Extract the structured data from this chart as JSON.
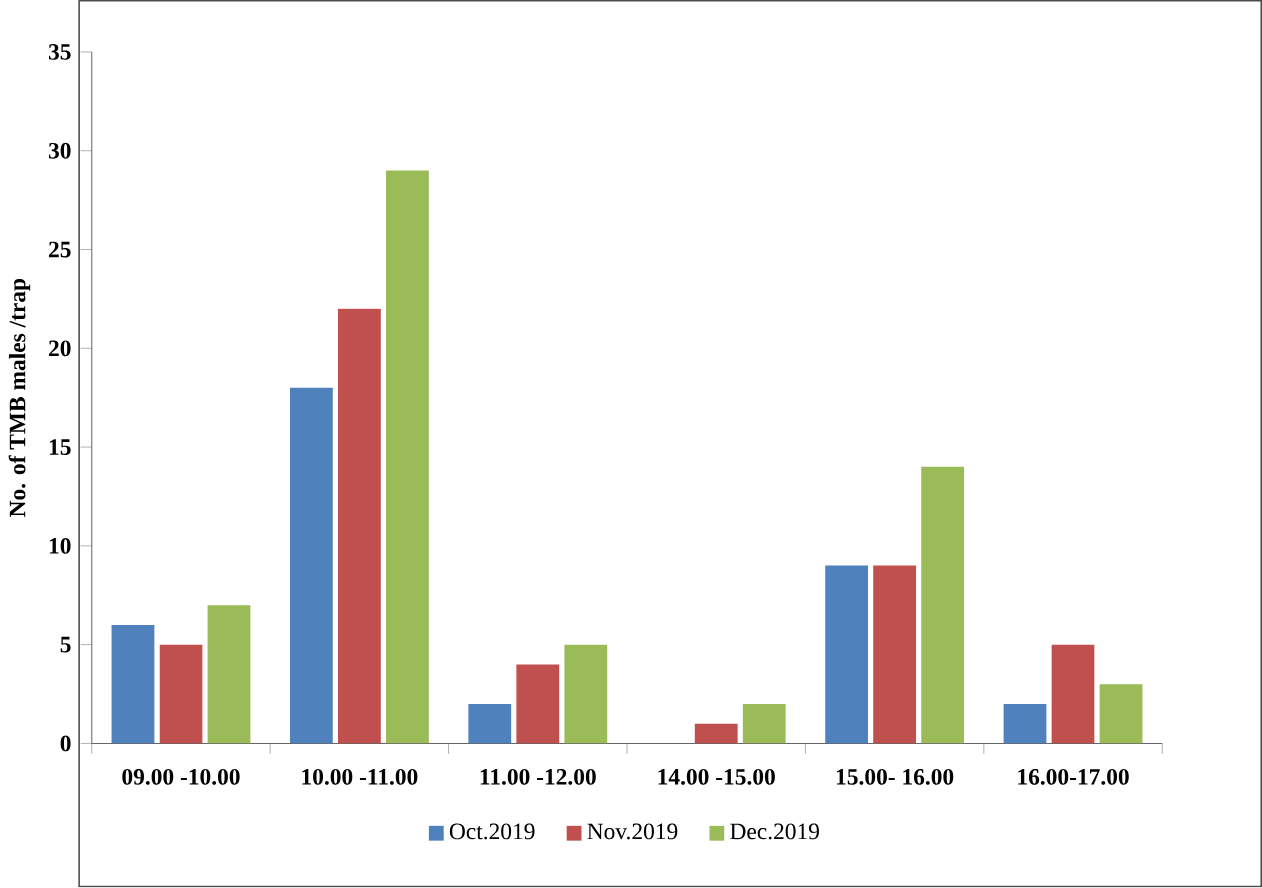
{
  "chart_data": {
    "type": "bar",
    "ylabel": "No. of TMB males /trap",
    "categories": [
      "09.00 -10.00",
      "10.00 -11.00",
      "11.00 -12.00",
      "14.00 -15.00",
      "15.00- 16.00",
      "16.00-17.00"
    ],
    "series": [
      {
        "name": "Oct.2019",
        "color": "#4f81bd",
        "values": [
          6,
          18,
          2,
          0,
          9,
          2
        ]
      },
      {
        "name": "Nov.2019",
        "color": "#c0504d",
        "values": [
          5,
          22,
          4,
          1,
          9,
          5
        ]
      },
      {
        "name": "Dec.2019",
        "color": "#9bbb59",
        "values": [
          7,
          29,
          5,
          2,
          14,
          3
        ]
      }
    ],
    "ylim": [
      0,
      35
    ],
    "yticks": [
      0,
      5,
      10,
      15,
      20,
      25,
      30,
      35
    ],
    "legend": "bottom"
  }
}
